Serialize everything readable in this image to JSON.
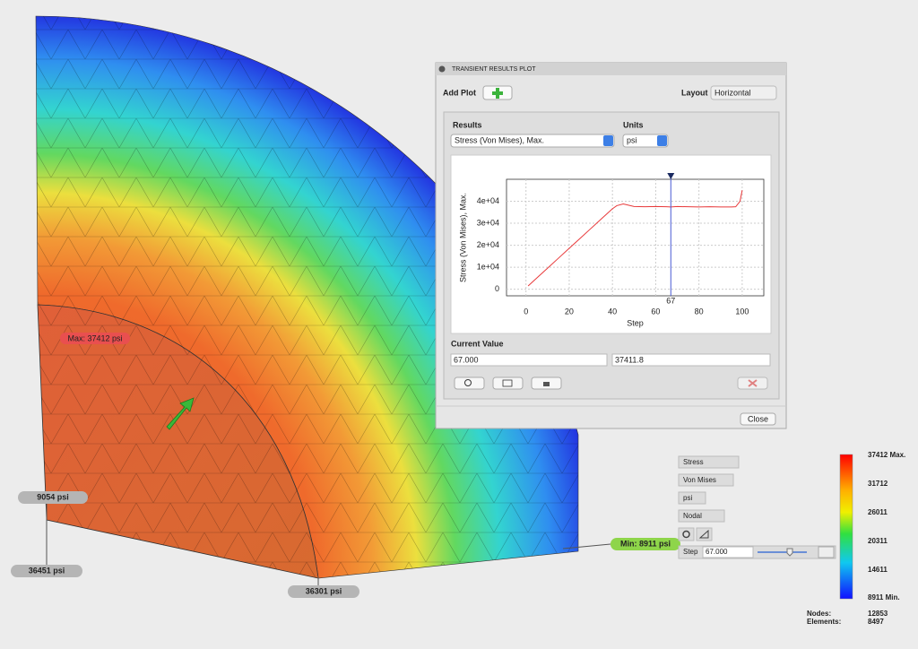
{
  "dialog": {
    "title": "TRANSIENT RESULTS PLOT",
    "add_plot": "Add Plot",
    "layout_label": "Layout",
    "layout_value": "Horizontal",
    "results_label": "Results",
    "results_value": "Stress (Von Mises), Max.",
    "units_label": "Units",
    "units_value": "psi",
    "current_value_label": "Current Value",
    "current_step": "67.000",
    "current_result": "37411.8",
    "close": "Close"
  },
  "chart_data": {
    "type": "line",
    "x_label": "Step",
    "y_label": "Stress (Von Mises), Max.",
    "x": [
      1,
      5,
      10,
      15,
      20,
      25,
      30,
      35,
      40,
      42,
      45,
      50,
      55,
      60,
      65,
      67,
      70,
      75,
      80,
      85,
      90,
      95,
      97,
      99,
      100
    ],
    "values": [
      1500,
      5100,
      9600,
      14100,
      18600,
      23100,
      27600,
      32100,
      36600,
      38000,
      38800,
      37600,
      37500,
      37600,
      37500,
      37412,
      37600,
      37500,
      37400,
      37500,
      37400,
      37400,
      37500,
      40000,
      45000
    ],
    "color": "#e8393a",
    "xlim": [
      -9,
      110
    ],
    "ylim": [
      -3000,
      50000
    ],
    "xticks": [
      0,
      20,
      40,
      60,
      80,
      100
    ],
    "yticks": [
      0,
      {
        "value": 10000,
        "label": "1e+04"
      },
      {
        "value": 20000,
        "label": "2e+04"
      },
      {
        "value": 30000,
        "label": "3e+04"
      },
      {
        "value": 40000,
        "label": "4e+04"
      }
    ],
    "grid": true,
    "marker": 67
  },
  "probes": [
    "Max: 37412 psi",
    "9054 psi",
    "36451 psi",
    "36301 psi",
    "Min: 8911 psi"
  ],
  "display_controls": {
    "result": "Stress",
    "component": "Von Mises",
    "units": "psi",
    "location": "Nodal",
    "step_label": "Step",
    "step_value": "67.000"
  },
  "legend": {
    "max": "37412 Max.",
    "ticks": [
      "31712",
      "26011",
      "20311",
      "14611"
    ],
    "min": "8911 Min."
  },
  "model_info": {
    "nodes_label": "Nodes:",
    "nodes": "12853",
    "elements_label": "Elements:",
    "elements": "8497"
  }
}
